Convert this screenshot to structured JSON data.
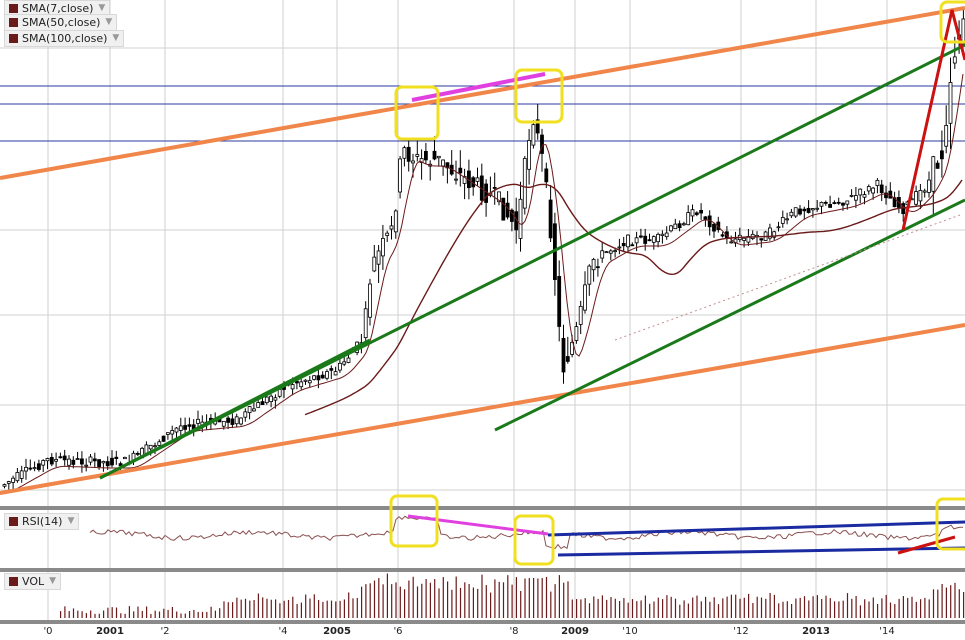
{
  "chart_data": {
    "type": "candlestick",
    "legend": [
      {
        "label": "SMA(7,close)",
        "color": "#6b1a1a"
      },
      {
        "label": "SMA(50,close)",
        "color": "#6b1a1a"
      },
      {
        "label": "SMA(100,close)",
        "color": "#6b1a1a"
      }
    ],
    "rsi_label": "RSI(14)",
    "vol_label": "VOL",
    "x_ticks": [
      {
        "label": "'0",
        "bold": false
      },
      {
        "label": "2001",
        "bold": true
      },
      {
        "label": "'2",
        "bold": false
      },
      {
        "label": "'4",
        "bold": false
      },
      {
        "label": "2005",
        "bold": true
      },
      {
        "label": "'6",
        "bold": false
      },
      {
        "label": "'8",
        "bold": false
      },
      {
        "label": "2009",
        "bold": true
      },
      {
        "label": "'10",
        "bold": false
      },
      {
        "label": "'12",
        "bold": false
      },
      {
        "label": "2013",
        "bold": true
      },
      {
        "label": "'14",
        "bold": false
      }
    ],
    "colors": {
      "up_candle": "#ffffff",
      "down_candle": "#000000",
      "sma": "#6b1a1a",
      "orange_channel": "#f0864a",
      "green_channel": "#1a7a1a",
      "red_arrow": "#cc1111",
      "highlight_box": "#f0e020",
      "divergence": "#e040e0",
      "rsi_channel": "#1a2aa0"
    }
  }
}
